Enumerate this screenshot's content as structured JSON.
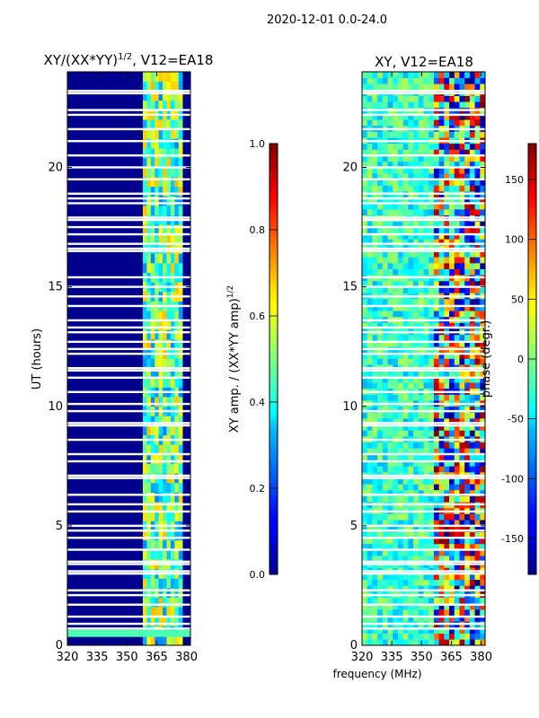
{
  "suptitle": "2020-12-01 0.0-24.0",
  "chart_data": [
    {
      "type": "heatmap",
      "title_main": "XY/(XX*YY)",
      "title_exp": "1/2",
      "title_tail": ", V12=EA18",
      "xlabel": "",
      "ylabel": "UT (hours)",
      "xlim": [
        320,
        382
      ],
      "ylim": [
        0,
        24
      ],
      "xticks": [
        320,
        335,
        350,
        365,
        380
      ],
      "yticks": [
        0,
        5,
        10,
        15,
        20
      ],
      "colorbar": {
        "label_main": "XY amp. / (XX*YY amp)",
        "label_exp": "1/2",
        "range": [
          0.0,
          1.0
        ],
        "ticks": [
          "0.0",
          "0.2",
          "0.4",
          "0.6",
          "0.8",
          "1.0"
        ],
        "colormap": "jet"
      }
    },
    {
      "type": "heatmap",
      "title": "XY, V12=EA18",
      "xlabel": "frequency (MHz)",
      "ylabel": "",
      "xlim": [
        320,
        382
      ],
      "ylim": [
        0,
        24
      ],
      "xticks": [
        320,
        335,
        350,
        365,
        380
      ],
      "yticks": [
        0,
        5,
        10,
        15,
        20
      ],
      "colorbar": {
        "label": "phase (degr.)",
        "range": [
          -180,
          180
        ],
        "ticks": [
          "-150",
          "-100",
          "-50",
          "0",
          "50",
          "100",
          "150"
        ],
        "colormap": "jet"
      }
    }
  ],
  "gap_rows_ut": [
    23.1,
    23.2,
    22.4,
    22.2,
    21.6,
    21.1,
    20.5,
    20.0,
    19.5,
    18.9,
    18.7,
    18.5,
    17.9,
    17.8,
    17.5,
    17.2,
    16.8,
    16.6,
    16.5,
    15.4,
    15.0,
    14.6,
    14.2,
    13.6,
    13.3,
    13.1,
    12.7,
    12.4,
    12.2,
    11.6,
    11.5,
    11.2,
    10.6,
    10.1,
    9.8,
    9.3,
    9.2,
    8.6,
    8.0,
    7.7,
    7.1,
    7.0,
    6.3,
    5.9,
    5.6,
    5.0,
    4.8,
    4.5,
    4.0,
    3.5,
    3.4,
    3.1,
    3.0,
    2.3,
    2.1,
    1.7,
    1.2,
    0.9,
    0.7
  ],
  "colors": {
    "background": "#00008f",
    "gap": "#ffffff",
    "axis": "#000000"
  }
}
